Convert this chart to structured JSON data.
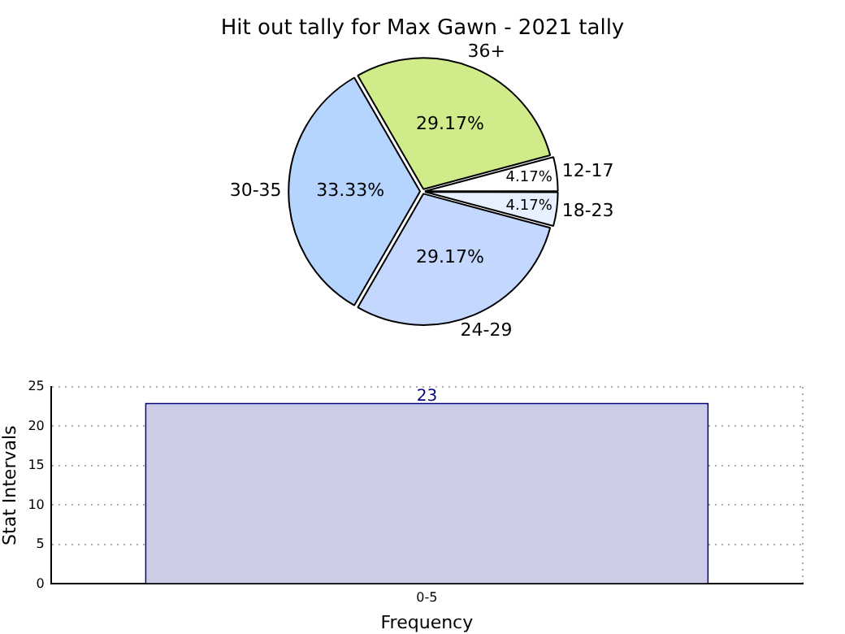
{
  "chart_data": [
    {
      "type": "pie",
      "title": "Hit out tally for Max Gawn - 2021 tally",
      "categories": [
        "12-17",
        "18-23",
        "24-29",
        "30-35",
        "36+"
      ],
      "values": [
        4.17,
        4.17,
        29.17,
        33.33,
        29.17
      ],
      "value_labels": [
        "4.17%",
        "4.17%",
        "29.17%",
        "33.33%",
        "29.17%"
      ],
      "colors": [
        "#ffffff",
        "#e6f0ff",
        "#c4d8ff",
        "#b5d5ff",
        "#d0eb8a"
      ],
      "legend": false
    },
    {
      "type": "bar",
      "categories": [
        "0-5"
      ],
      "values": [
        23
      ],
      "color": "#cccce6",
      "xlabel": "Frequency",
      "ylabel": "Stat Intervals",
      "ylim": [
        0,
        25
      ],
      "yticks": [
        0,
        5,
        10,
        15,
        20,
        25
      ],
      "grid": true,
      "data_labels": true,
      "legend": false
    }
  ]
}
